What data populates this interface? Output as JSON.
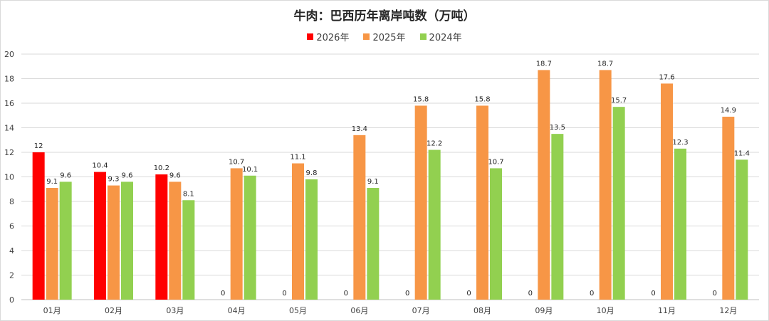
{
  "chart_data": {
    "type": "bar",
    "title": "牛肉：巴西历年离岸吨数（万吨）",
    "categories": [
      "01月",
      "02月",
      "03月",
      "04月",
      "05月",
      "06月",
      "07月",
      "08月",
      "09月",
      "10月",
      "11月",
      "12月"
    ],
    "series": [
      {
        "name": "2026年",
        "color": "#ff0000",
        "values": [
          12,
          10.4,
          10.2,
          0,
          0,
          0,
          0,
          0,
          0,
          0,
          0,
          0
        ]
      },
      {
        "name": "2025年",
        "color": "#f79646",
        "values": [
          9.1,
          9.3,
          9.6,
          10.7,
          11.1,
          13.4,
          15.8,
          15.8,
          18.7,
          18.7,
          17.6,
          14.9
        ]
      },
      {
        "name": "2024年",
        "color": "#92d050",
        "values": [
          9.6,
          9.6,
          8.1,
          10.1,
          9.8,
          9.1,
          12.2,
          10.7,
          13.5,
          15.7,
          12.3,
          11.4
        ]
      }
    ],
    "ylim": [
      0,
      20
    ],
    "yticks": [
      0,
      2,
      4,
      6,
      8,
      10,
      12,
      14,
      16,
      18,
      20
    ],
    "grid": true,
    "legend_position": "top"
  }
}
